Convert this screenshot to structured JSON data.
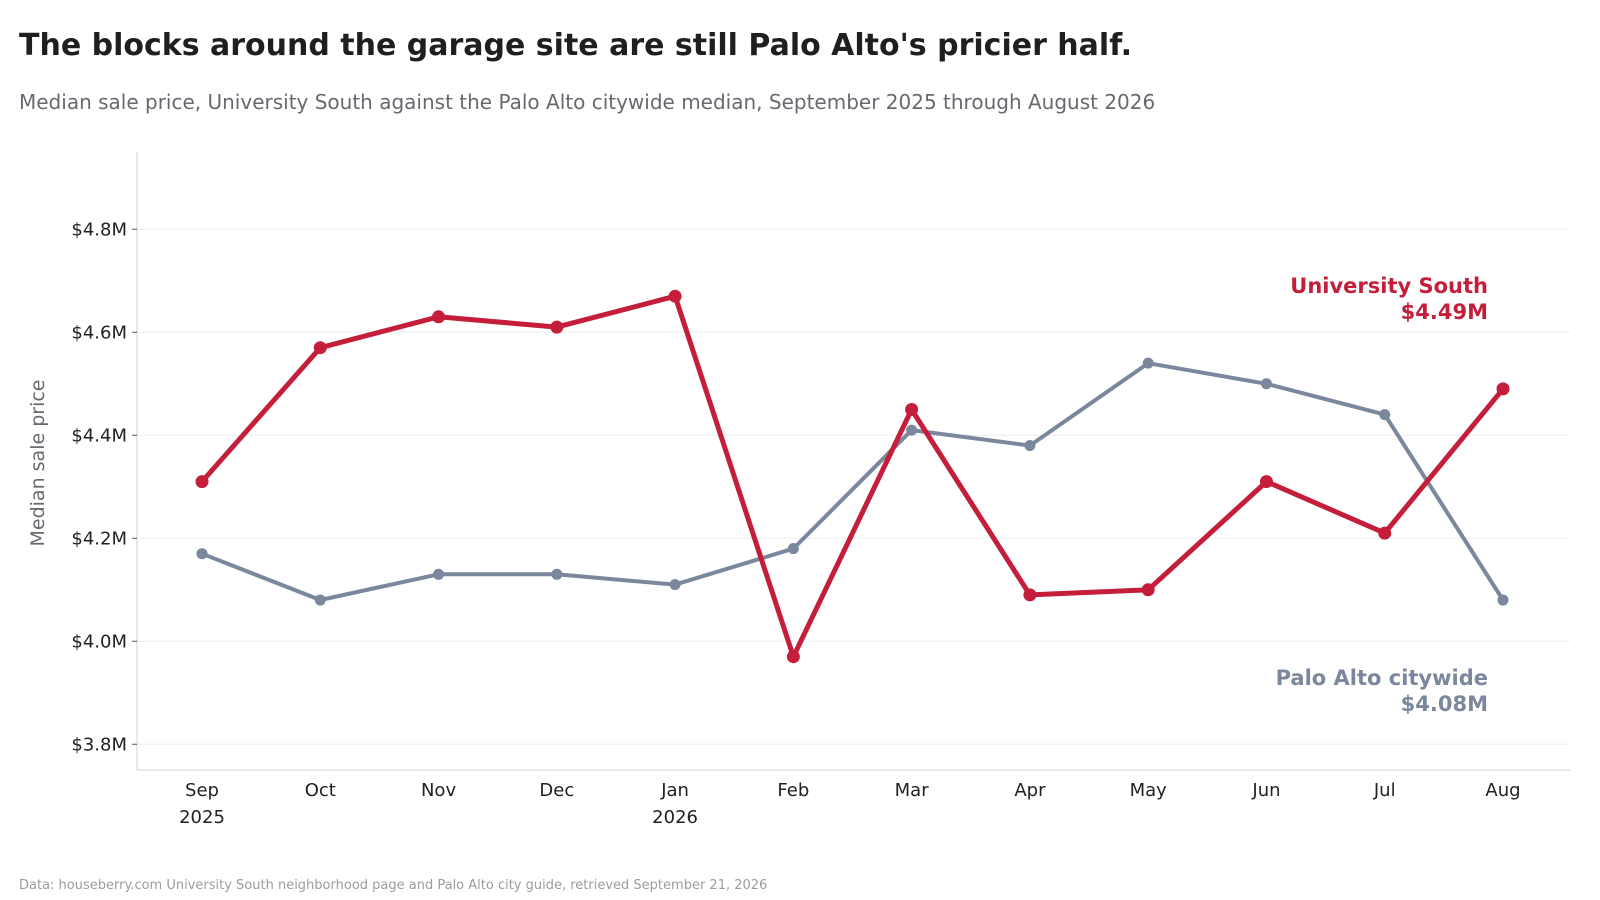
{
  "header": {
    "title": "The blocks around the garage site are still Palo Alto's pricier half.",
    "subtitle": "Median sale price, University South against the Palo Alto citywide median, September 2025 through August 2026"
  },
  "footer": {
    "source": "Data: houseberry.com University South neighborhood page and Palo Alto city guide, retrieved September 21, 2026"
  },
  "chart_data": {
    "type": "line",
    "title": "The blocks around the garage site are still Palo Alto's pricier half.",
    "subtitle": "Median sale price, University South against the Palo Alto citywide median, September 2025 through August 2026",
    "xlabel": "",
    "ylabel": "Median sale price",
    "categories": [
      "Sep",
      "Oct",
      "Nov",
      "Dec",
      "Jan",
      "Feb",
      "Mar",
      "Apr",
      "May",
      "Jun",
      "Jul",
      "Aug"
    ],
    "year_labels": [
      "2025",
      "",
      "",
      "",
      "2026",
      "",
      "",
      "",
      "",
      "",
      "",
      ""
    ],
    "ylim": [
      3.75,
      4.95
    ],
    "yticks": [
      3.8,
      4.0,
      4.2,
      4.4,
      4.6,
      4.8
    ],
    "ytick_labels": [
      "$3.8M",
      "$4.0M",
      "$4.2M",
      "$4.4M",
      "$4.6M",
      "$4.8M"
    ],
    "grid": true,
    "series": [
      {
        "name": "University South",
        "end_label": "$4.49M",
        "color": "#c41e3a",
        "values": [
          4.31,
          4.57,
          4.63,
          4.61,
          4.67,
          3.97,
          4.45,
          4.09,
          4.1,
          4.31,
          4.21,
          4.49
        ]
      },
      {
        "name": "Palo Alto citywide",
        "end_label": "$4.08M",
        "color": "#7a879c",
        "values": [
          4.17,
          4.08,
          4.13,
          4.13,
          4.11,
          4.18,
          4.41,
          4.38,
          4.54,
          4.5,
          4.44,
          4.08
        ]
      }
    ]
  }
}
